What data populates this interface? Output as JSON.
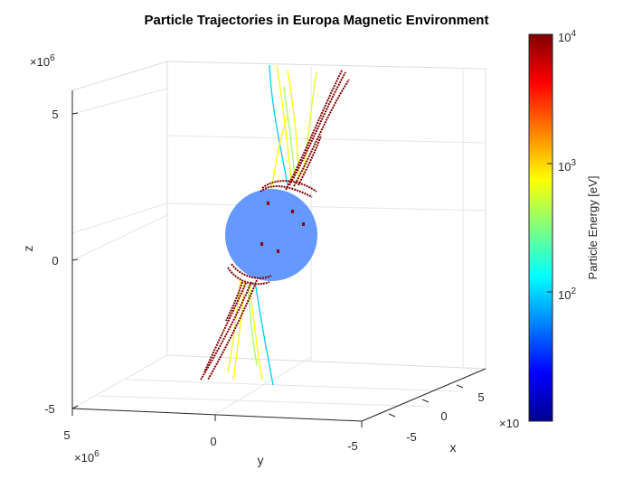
{
  "chart_data": {
    "type": "3d-line",
    "title": "Particle Trajectories in Europa Magnetic Environment",
    "xlabel": "x",
    "ylabel": "y",
    "zlabel": "z",
    "x_ticks": [
      -5,
      0,
      5
    ],
    "y_ticks": [
      5,
      0,
      -5
    ],
    "z_ticks": [
      -5,
      0,
      5
    ],
    "x_exponent": "×10",
    "y_exponent": "×10^6",
    "z_exponent": "×10^6",
    "xlim": [
      -6,
      6
    ],
    "ylim": [
      -7,
      7
    ],
    "zlim": [
      -5.5,
      6.5
    ],
    "grid": true,
    "colorbar": {
      "label": "Particle Energy [eV]",
      "scale": "log",
      "range": [
        10,
        10000
      ],
      "ticks": [
        "10^2",
        "10^3",
        "10^4"
      ],
      "colormap": "jet"
    },
    "body": {
      "name": "Europa",
      "color": "#6699ff",
      "center": [
        0,
        0,
        0
      ],
      "radius": 1.56
    },
    "trajectory_energy_colors": [
      "#800000",
      "#ffff00",
      "#e6ff1a",
      "#00ccff",
      "#a0ff60"
    ]
  }
}
